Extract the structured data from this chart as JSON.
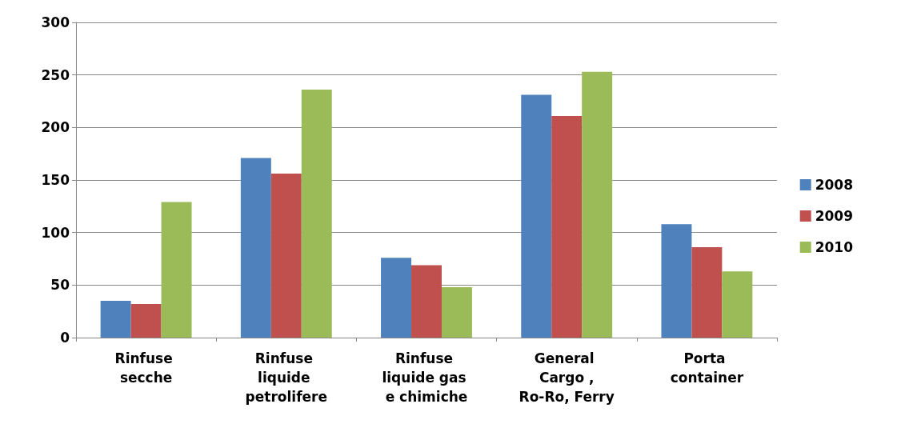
{
  "chart_data": {
    "type": "bar",
    "categories": [
      "Rinfuse secche",
      "Rinfuse liquide petrolifere",
      "Rinfuse liquide gas e chimiche",
      "General Cargo ,Ro-Ro, Ferry",
      "Porta container"
    ],
    "series": [
      {
        "name": "2008",
        "color": "#4f81bd",
        "values": [
          35,
          171,
          76,
          231,
          108
        ]
      },
      {
        "name": "2009",
        "color": "#c0504d",
        "values": [
          32,
          156,
          69,
          211,
          86
        ]
      },
      {
        "name": "2010",
        "color": "#9bbb59",
        "values": [
          129,
          236,
          48,
          253,
          63
        ]
      }
    ],
    "ylim": [
      0,
      300
    ],
    "yticks": [
      0,
      50,
      100,
      150,
      200,
      250,
      300
    ],
    "grid": "y",
    "legend": "right"
  }
}
